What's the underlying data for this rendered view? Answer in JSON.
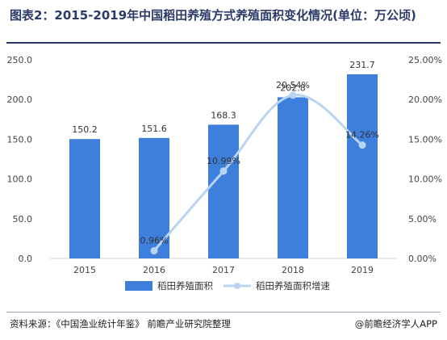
{
  "title": "图表2：2015-2019年中国稻田养殖方式养殖面积变化情况(单位：万公顷)",
  "source": "资料来源：《中国渔业统计年鉴》 前瞻产业研究院整理",
  "credit": "@前瞻经济学人APP",
  "colors": {
    "bar": "#3f7fdc",
    "line": "#b9d3f3",
    "title": "#2b3a67"
  },
  "chart_data": {
    "type": "bar",
    "categories": [
      "2015",
      "2016",
      "2017",
      "2018",
      "2019"
    ],
    "series": [
      {
        "name": "稻田养殖面积",
        "type": "bar",
        "axis": "left",
        "values": [
          150.2,
          151.6,
          168.3,
          202.8,
          231.7
        ],
        "labels": [
          "150.2",
          "151.6",
          "168.3",
          "202.8",
          "231.7"
        ]
      },
      {
        "name": "稻田养殖面积增速",
        "type": "line",
        "axis": "right",
        "values": [
          null,
          0.96,
          10.99,
          20.54,
          14.26
        ],
        "labels": [
          null,
          "0.96%",
          "10.99%",
          "20.54%",
          "14.26%"
        ]
      }
    ],
    "y_left": {
      "range": [
        0,
        250
      ],
      "ticks": [
        "0.0",
        "50.0",
        "100.0",
        "150.0",
        "200.0",
        "250.0"
      ]
    },
    "y_right": {
      "range": [
        0,
        25
      ],
      "ticks": [
        "0.00%",
        "5.00%",
        "10.00%",
        "15.00%",
        "20.00%",
        "25.00%"
      ]
    },
    "grid": false,
    "legend_position": "bottom"
  }
}
